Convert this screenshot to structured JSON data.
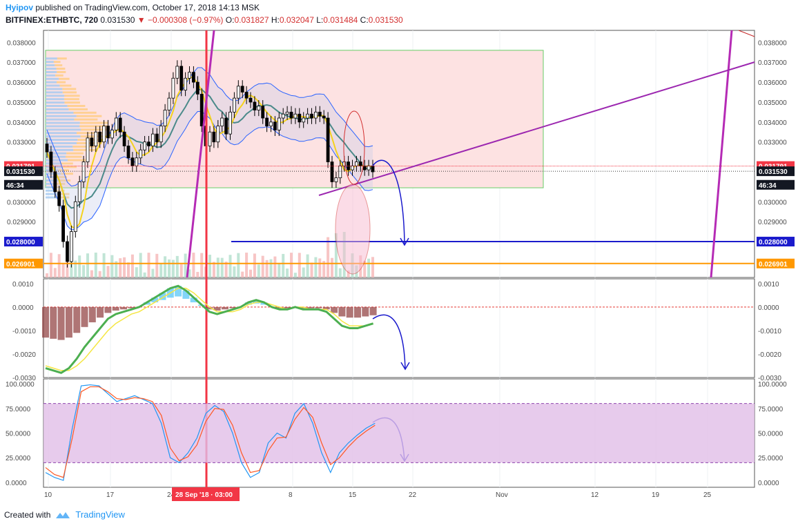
{
  "header": {
    "author": "Hyipov",
    "published_text": "published on TradingView.com, October 17, 2018 14:13 MSK",
    "symbol": "BITFINEX:ETHBTC, 720",
    "last": "0.031530",
    "change": "−0.000308 (−0.97%)",
    "open_label": "O:",
    "open": "0.031827",
    "high_label": "H:",
    "high": "0.032047",
    "low_label": "L:",
    "low": "0.031484",
    "close_label": "C:",
    "close": "0.031530"
  },
  "footer": {
    "created_with": "Created with",
    "brand": "TradingView"
  },
  "colors": {
    "bull": "#ffffff",
    "bear": "#000000",
    "red_tag": "#f23645",
    "blue_level": "#1a1acc",
    "orange_level": "#ff9800",
    "purple": "#9c27b0",
    "purple_band": "#e1bee7"
  },
  "chart_data": [
    {
      "type": "candlestick",
      "title": "BITFINEX:ETHBTC, 720",
      "x_tick_labels": [
        "10",
        "17",
        "24",
        "8",
        "15",
        "22",
        "Nov",
        "12",
        "19",
        "25"
      ],
      "ylim": [
        0.0262,
        0.0386
      ],
      "y_tick_labels": [
        "0.038000",
        "0.037000",
        "0.036000",
        "0.035000",
        "0.034000",
        "0.033000",
        "0.030000",
        "0.029000"
      ],
      "price_tags": [
        {
          "label": "0.031791",
          "value": 0.031791,
          "color": "#f23645"
        },
        {
          "label": "0.031530",
          "value": 0.03153,
          "color": "#131722"
        },
        {
          "label": "46:34",
          "value": 0.03085,
          "color": "#131722"
        },
        {
          "label": "0.028000",
          "value": 0.028,
          "color": "#1a1acc"
        },
        {
          "label": "0.026901",
          "value": 0.026901,
          "color": "#ff9800"
        }
      ],
      "horizontal_levels": [
        {
          "value": 0.028,
          "color": "#1a1acc"
        },
        {
          "value": 0.026901,
          "color": "#ff9800"
        }
      ],
      "range_box": {
        "from_bar": 0,
        "to_bar": 102,
        "top": 0.0376,
        "bottom": 0.0307
      },
      "series": [
        {
          "close": [
            0.0325,
            0.0315,
            0.0305,
            0.0298,
            0.028,
            0.027,
            0.0285,
            0.03,
            0.031,
            0.032,
            0.0332,
            0.0328,
            0.0335,
            0.033,
            0.0338,
            0.0332,
            0.0336,
            0.0342,
            0.0335,
            0.0328,
            0.0322,
            0.0318,
            0.0322,
            0.0326,
            0.033,
            0.0328,
            0.0334,
            0.033,
            0.0338,
            0.0346,
            0.0352,
            0.0362,
            0.0368,
            0.0356,
            0.0362,
            0.0365,
            0.036,
            0.0354,
            0.0338,
            0.0328,
            0.0335,
            0.033,
            0.0338,
            0.0342,
            0.0334,
            0.0345,
            0.0352,
            0.0358,
            0.0355,
            0.0352,
            0.035,
            0.0346,
            0.0348,
            0.0342,
            0.0338,
            0.034,
            0.0336,
            0.0342,
            0.0344,
            0.0345,
            0.0342,
            0.0344,
            0.034,
            0.0342,
            0.0344,
            0.0342,
            0.0345,
            0.0343,
            0.0342,
            0.032,
            0.031,
            0.0312,
            0.0318,
            0.032,
            0.0316,
            0.0318,
            0.032,
            0.0318,
            0.0316,
            0.0318,
            0.0315
          ]
        }
      ]
    },
    {
      "type": "line",
      "title": "MACD",
      "ylim": [
        -0.003,
        0.0012
      ],
      "y_tick_labels": [
        "0.0010",
        "0.0000",
        "-0.0010",
        "-0.0020",
        "-0.0030"
      ],
      "series": [
        {
          "values": [
            -0.0026,
            -0.0027,
            -0.0028,
            -0.0026,
            -0.0022,
            -0.0017,
            -0.0013,
            -0.0009,
            -0.0005,
            -0.0003,
            -0.0002,
            -0.0001,
            0.0,
            0.0002,
            0.0004,
            0.0006,
            0.0008,
            0.0009,
            0.0007,
            0.0004,
            0.0001,
            -0.0002,
            -0.0003,
            -0.0002,
            -0.0001,
            0.0,
            0.0002,
            0.0003,
            0.0002,
            0.0,
            -0.0001,
            -0.0001,
            0.0,
            -0.0001,
            -0.0001,
            -0.0001,
            -0.0002,
            -0.0005,
            -0.0008,
            -0.0009,
            -0.0009,
            -0.0008,
            -0.0007
          ]
        },
        {
          "values": [
            -0.0025,
            -0.0026,
            -0.0027,
            -0.0027,
            -0.0025,
            -0.0022,
            -0.0018,
            -0.0014,
            -0.001,
            -0.0007,
            -0.0005,
            -0.0003,
            -0.0002,
            0.0,
            0.0002,
            0.0004,
            0.0006,
            0.0008,
            0.0008,
            0.0006,
            0.0003,
            0.0,
            -0.0002,
            -0.0002,
            -0.0002,
            -0.0001,
            0.0001,
            0.0002,
            0.0002,
            0.0001,
            0.0,
            -0.0001,
            0.0,
            0.0,
            -0.0001,
            -0.0001,
            -0.0001,
            -0.0003,
            -0.0006,
            -0.0008,
            -0.0008,
            -0.0008,
            -0.0007
          ]
        }
      ]
    },
    {
      "type": "line",
      "title": "Stochastic",
      "ylim": [
        -5,
        105
      ],
      "y_tick_labels": [
        "100.0000",
        "75.0000",
        "50.0000",
        "25.0000",
        "0.0000"
      ],
      "band": [
        20,
        80
      ],
      "series": [
        {
          "values": [
            10,
            5,
            2,
            55,
            98,
            99,
            98,
            90,
            82,
            85,
            88,
            84,
            80,
            60,
            25,
            20,
            30,
            45,
            70,
            78,
            72,
            50,
            20,
            5,
            10,
            40,
            50,
            45,
            70,
            80,
            60,
            30,
            10,
            30,
            40,
            48,
            55,
            60
          ]
        },
        {
          "values": [
            15,
            8,
            5,
            45,
            92,
            97,
            97,
            92,
            85,
            84,
            86,
            85,
            82,
            68,
            35,
            22,
            26,
            38,
            62,
            75,
            74,
            58,
            30,
            10,
            12,
            32,
            45,
            46,
            64,
            76,
            66,
            40,
            18,
            25,
            36,
            45,
            52,
            58
          ]
        }
      ]
    }
  ],
  "annotations": {
    "date_badge": "28 Sep '18 · 03:00"
  }
}
